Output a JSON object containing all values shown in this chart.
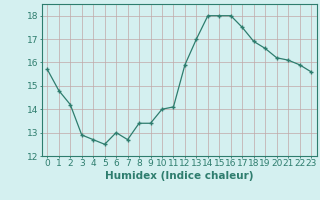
{
  "x": [
    0,
    1,
    2,
    3,
    4,
    5,
    6,
    7,
    8,
    9,
    10,
    11,
    12,
    13,
    14,
    15,
    16,
    17,
    18,
    19,
    20,
    21,
    22,
    23
  ],
  "y": [
    15.7,
    14.8,
    14.2,
    12.9,
    12.7,
    12.5,
    13.0,
    12.7,
    13.4,
    13.4,
    14.0,
    14.1,
    15.9,
    17.0,
    18.0,
    18.0,
    18.0,
    17.5,
    16.9,
    16.6,
    16.2,
    16.1,
    15.9,
    15.6
  ],
  "xlabel": "Humidex (Indice chaleur)",
  "ylim": [
    12,
    18.5
  ],
  "xlim": [
    -0.5,
    23.5
  ],
  "yticks": [
    12,
    13,
    14,
    15,
    16,
    17,
    18
  ],
  "xticks": [
    0,
    1,
    2,
    3,
    4,
    5,
    6,
    7,
    8,
    9,
    10,
    11,
    12,
    13,
    14,
    15,
    16,
    17,
    18,
    19,
    20,
    21,
    22,
    23
  ],
  "line_color": "#2e7d6e",
  "marker": "+",
  "bg_color": "#d4f0f0",
  "grid_color": "#c0a8a8",
  "axis_color": "#2e7d6e",
  "label_fontsize": 7.5,
  "tick_fontsize": 6.5
}
